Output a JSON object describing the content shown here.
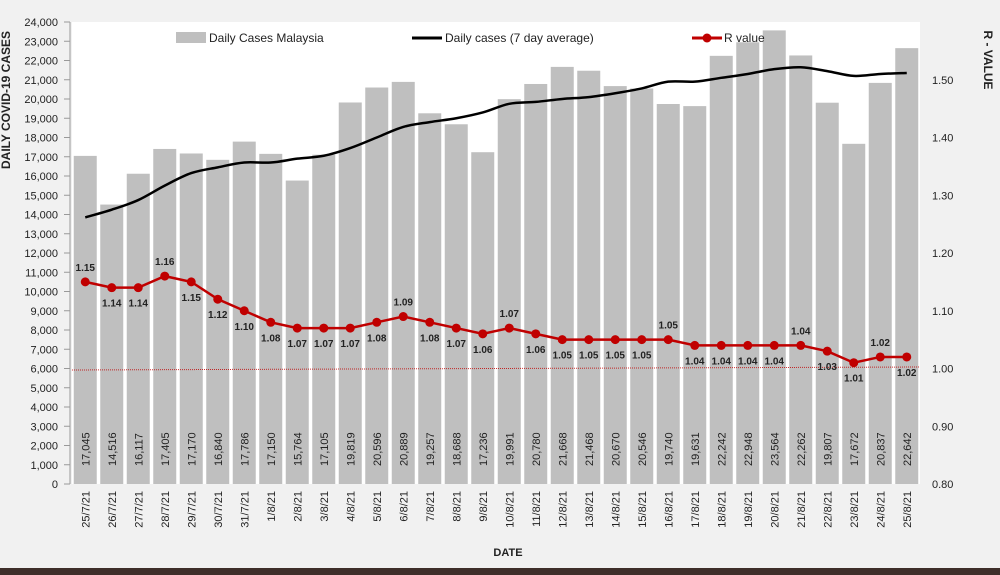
{
  "chart_data": {
    "type": "bar",
    "xlabel": "DATE",
    "ylabel_left": "DAILY COVID-19 CASES",
    "ylabel_right": "R - VALUE",
    "ylim_left": [
      0,
      24000
    ],
    "ytick_step_left": 1000,
    "ylim_right": [
      0.8,
      1.6
    ],
    "yticks_right": [
      "0.80",
      "0.90",
      "1.00",
      "1.10",
      "1.20",
      "1.30",
      "1.40",
      "1.50"
    ],
    "reference_line_r": 1.0,
    "categories": [
      "25/7/21",
      "26/7/21",
      "27/7/21",
      "28/7/21",
      "29/7/21",
      "30/7/21",
      "31/7/21",
      "1/8/21",
      "2/8/21",
      "3/8/21",
      "4/8/21",
      "5/8/21",
      "6/8/21",
      "7/8/21",
      "8/8/21",
      "9/8/21",
      "10/8/21",
      "11/8/21",
      "12/8/21",
      "13/8/21",
      "14/8/21",
      "15/8/21",
      "16/8/21",
      "17/8/21",
      "18/8/21",
      "19/8/21",
      "20/8/21",
      "21/8/21",
      "22/8/21",
      "23/8/21",
      "24/8/21",
      "25/8/21"
    ],
    "series": [
      {
        "name": "Daily Cases Malaysia",
        "type": "bar",
        "axis": "left",
        "color": "#bfbfbf",
        "values": [
          17045,
          14516,
          16117,
          17405,
          17170,
          16840,
          17786,
          17150,
          15764,
          17105,
          19819,
          20596,
          20889,
          19257,
          18688,
          17236,
          19991,
          20780,
          21668,
          21468,
          20670,
          20546,
          19740,
          19631,
          22242,
          22948,
          23564,
          22262,
          19807,
          17672,
          20837,
          22642
        ],
        "labels": [
          "17,045",
          "14,516",
          "16,117",
          "17,405",
          "17,170",
          "16,840",
          "17,786",
          "17,150",
          "15,764",
          "17,105",
          "19,819",
          "20,596",
          "20,889",
          "19,257",
          "18,688",
          "17,236",
          "19,991",
          "20,780",
          "21,668",
          "21,468",
          "20,670",
          "20,546",
          "19,740",
          "19,631",
          "22,242",
          "22,948",
          "23,564",
          "22,262",
          "19,807",
          "17,672",
          "20,837",
          "22,642"
        ]
      },
      {
        "name": "Daily cases (7 day average)",
        "type": "line",
        "axis": "left",
        "color": "#000000",
        "values": [
          13850,
          14250,
          14750,
          15500,
          16150,
          16450,
          16700,
          16700,
          16900,
          17050,
          17450,
          18000,
          18550,
          18800,
          19000,
          19300,
          19750,
          19850,
          20000,
          20100,
          20300,
          20550,
          20900,
          20900,
          21100,
          21300,
          21550,
          21650,
          21450,
          21200,
          21300,
          21350
        ]
      },
      {
        "name": "R value",
        "type": "line",
        "axis": "right",
        "color": "#c00000",
        "values": [
          1.15,
          1.14,
          1.14,
          1.16,
          1.15,
          1.12,
          1.1,
          1.08,
          1.07,
          1.07,
          1.07,
          1.08,
          1.09,
          1.08,
          1.07,
          1.06,
          1.07,
          1.06,
          1.05,
          1.05,
          1.05,
          1.05,
          1.05,
          1.04,
          1.04,
          1.04,
          1.04,
          1.04,
          1.03,
          1.01,
          1.02,
          1.02
        ],
        "labels": [
          "1.15",
          "1.14",
          "1.14",
          "1.16",
          "1.15",
          "1.12",
          "1.10",
          "1.08",
          "1.07",
          "1.07",
          "1.07",
          "1.08",
          "1.09",
          "1.08",
          "1.07",
          "1.06",
          "1.07",
          "1.06",
          "1.05",
          "1.05",
          "1.05",
          "1.05",
          "1.05",
          "1.04",
          "1.04",
          "1.04",
          "1.04",
          "1.04",
          "1.03",
          "1.01",
          "1.02",
          "1.02"
        ]
      }
    ],
    "legend": "top"
  }
}
